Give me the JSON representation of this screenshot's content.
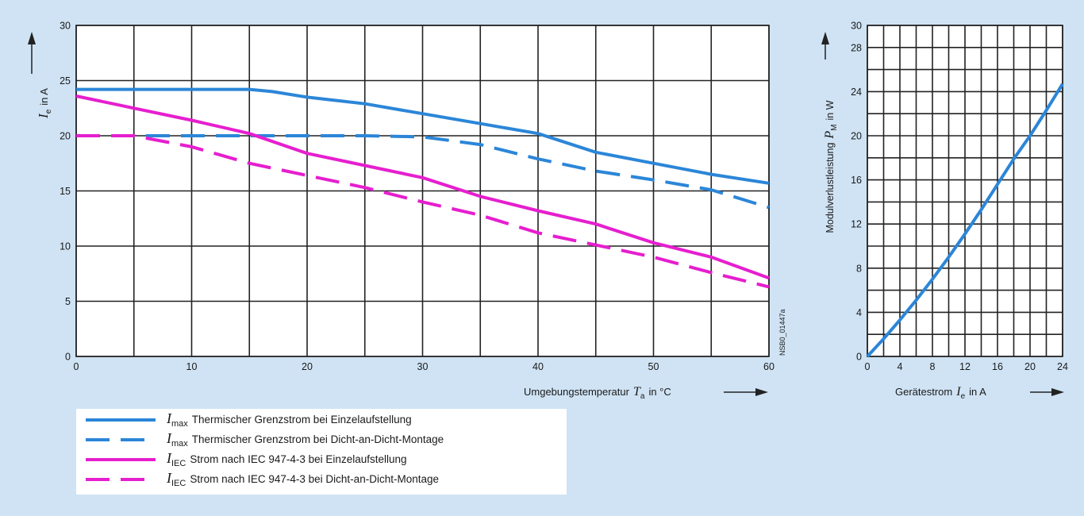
{
  "background_color": "#cfe3f4",
  "plot_background": "#ffffff",
  "colors": {
    "blue": "#2b86d8",
    "magenta": "#e61ecf"
  },
  "chart_data": [
    {
      "type": "line",
      "xlabel": "Umgebungstemperatur",
      "xlabel_symbol": "T",
      "xlabel_subscript": "a",
      "xlabel_unit": "in °C",
      "ylabel_symbol": "I",
      "ylabel_subscript": "e",
      "ylabel_unit": "in A",
      "xlim": [
        0,
        60
      ],
      "ylim": [
        0,
        30
      ],
      "xticks": [
        0,
        10,
        20,
        30,
        40,
        50,
        60
      ],
      "yticks": [
        0,
        5,
        10,
        15,
        20,
        25,
        30
      ],
      "grid": true,
      "annotation": "NSB0_01447a",
      "legend_placement": "bottom-left",
      "series": [
        {
          "symbol": "I",
          "subscript": "max",
          "name": "Thermischer Grenzstrom bei Einzelaufstellung",
          "color": "#2b86d8",
          "dashed": false,
          "x": [
            0,
            5,
            10,
            15,
            17,
            20,
            25,
            30,
            35,
            40,
            45,
            50,
            55,
            60
          ],
          "y": [
            24.2,
            24.2,
            24.2,
            24.2,
            24.0,
            23.5,
            22.9,
            22.0,
            21.1,
            20.2,
            18.5,
            17.5,
            16.5,
            15.7
          ]
        },
        {
          "symbol": "I",
          "subscript": "max",
          "name": "Thermischer Grenzstrom bei Dicht-an-Dicht-Montage",
          "color": "#2b86d8",
          "dashed": true,
          "x": [
            0,
            5,
            10,
            15,
            20,
            25,
            30,
            35,
            40,
            45,
            50,
            55,
            60
          ],
          "y": [
            20.0,
            20.0,
            20.0,
            20.0,
            20.0,
            20.0,
            19.9,
            19.2,
            17.9,
            16.8,
            16.0,
            15.1,
            13.5
          ]
        },
        {
          "symbol": "I",
          "subscript": "IEC",
          "name": "Strom nach IEC 947-4-3 bei Einzelaufstellung",
          "color": "#e61ecf",
          "dashed": false,
          "x": [
            0,
            5,
            10,
            15,
            20,
            25,
            30,
            35,
            40,
            45,
            50,
            55,
            60
          ],
          "y": [
            23.6,
            22.5,
            21.4,
            20.2,
            18.4,
            17.3,
            16.2,
            14.5,
            13.2,
            12.0,
            10.3,
            9.0,
            7.1
          ]
        },
        {
          "symbol": "I",
          "subscript": "IEC",
          "name": "Strom nach IEC 947-4-3 bei Dicht-an-Dicht-Montage",
          "color": "#e61ecf",
          "dashed": true,
          "x": [
            0,
            5,
            10,
            15,
            20,
            25,
            30,
            35,
            40,
            45,
            50,
            55,
            60
          ],
          "y": [
            20.0,
            20.0,
            19.0,
            17.5,
            16.4,
            15.3,
            14.0,
            12.8,
            11.2,
            10.1,
            9.0,
            7.6,
            6.3
          ]
        }
      ]
    },
    {
      "type": "line",
      "xlabel": "Gerätestrom",
      "xlabel_symbol": "I",
      "xlabel_subscript": "e",
      "xlabel_unit": "in A",
      "ylabel": "Modulverlustleistung",
      "ylabel_symbol": "P",
      "ylabel_subscript": "M",
      "ylabel_unit": "in W",
      "xlim": [
        0,
        24
      ],
      "ylim": [
        0,
        30
      ],
      "xticks": [
        0,
        4,
        8,
        12,
        16,
        20,
        24
      ],
      "yticks": [
        0,
        4,
        8,
        12,
        16,
        20,
        24,
        28,
        30
      ],
      "grid": true,
      "series": [
        {
          "color": "#2b86d8",
          "dashed": false,
          "x": [
            0,
            2,
            4,
            6,
            8,
            10,
            12,
            14,
            16,
            18,
            20,
            22,
            24
          ],
          "y": [
            0,
            1.6,
            3.3,
            5.1,
            7.0,
            9.0,
            11.1,
            13.3,
            15.6,
            17.9,
            20.0,
            22.3,
            24.7
          ]
        }
      ]
    }
  ]
}
